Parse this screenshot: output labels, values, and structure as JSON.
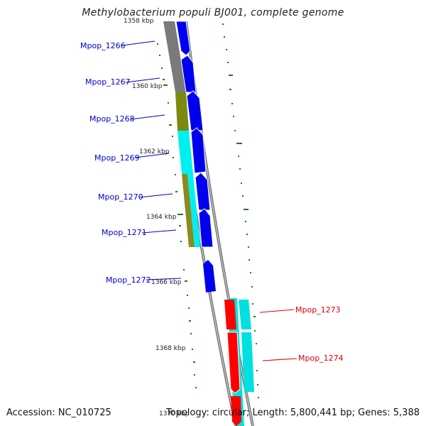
{
  "title": "Methylobacterium populi BJ001, complete genome",
  "accession": "Accession: NC_010725",
  "topology": "Topology: circular; Length: 5,800,441 bp; Genes: 5,388",
  "colors": {
    "forward_cds": "#0000ee",
    "reverse_cds": "#ff0000",
    "track_gray": "#808080",
    "olive": "#808000",
    "cyan": "#00ffff",
    "gc_tick": "#006400"
  },
  "ticks": [
    "1358 kbp",
    "1360 kbp",
    "1362 kbp",
    "1364 kbp",
    "1366 kbp",
    "1368 kbp",
    "1370 kbp"
  ],
  "forward_genes": [
    "Mpop_1266",
    "Mpop_1267",
    "Mpop_1268",
    "Mpop_1269",
    "Mpop_1270",
    "Mpop_1271",
    "Mpop_1272"
  ],
  "reverse_genes": [
    "Mpop_1273",
    "Mpop_1274"
  ]
}
